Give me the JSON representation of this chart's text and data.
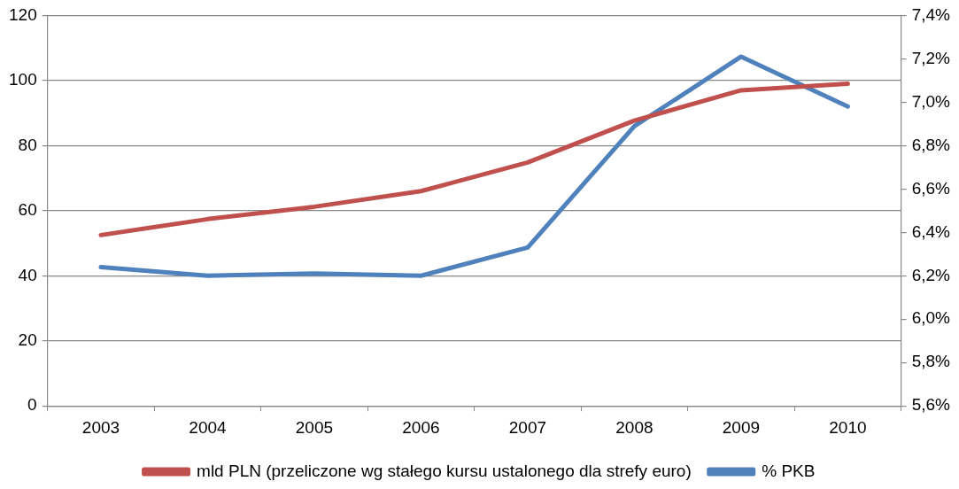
{
  "chart_data": {
    "type": "line",
    "categories": [
      "2003",
      "2004",
      "2005",
      "2006",
      "2007",
      "2008",
      "2009",
      "2010"
    ],
    "series": [
      {
        "name": "mld PLN (przeliczone wg stałego kursu ustalonego dla strefy euro)",
        "color": "#c0504d",
        "values": [
          52.5,
          57.4,
          61.2,
          66,
          74.8,
          87.7,
          97,
          99
        ]
      },
      {
        "name": "% PKB",
        "color": "#4f81bd",
        "axis": "y2",
        "values": [
          6.24,
          6.2,
          6.21,
          6.2,
          6.33,
          6.89,
          7.21,
          6.98
        ]
      }
    ],
    "ylim": [
      0,
      120
    ],
    "yticks": [
      0,
      20,
      40,
      60,
      80,
      100,
      120
    ],
    "y2lim": [
      5.6,
      7.4
    ],
    "y2ticks": [
      {
        "value": 5.6,
        "label": "5,6%"
      },
      {
        "value": 5.8,
        "label": "5,8%"
      },
      {
        "value": 6.0,
        "label": "6,0%"
      },
      {
        "value": 6.2,
        "label": "6,2%"
      },
      {
        "value": 6.4,
        "label": "6,4%"
      },
      {
        "value": 6.6,
        "label": "6,6%"
      },
      {
        "value": 6.8,
        "label": "6,8%"
      },
      {
        "value": 7.0,
        "label": "7,0%"
      },
      {
        "value": 7.2,
        "label": "7,2%"
      },
      {
        "value": 7.4,
        "label": "7,4%"
      }
    ],
    "grid": "y",
    "legend": "bottom",
    "marker": "none",
    "line_style": "solid"
  }
}
